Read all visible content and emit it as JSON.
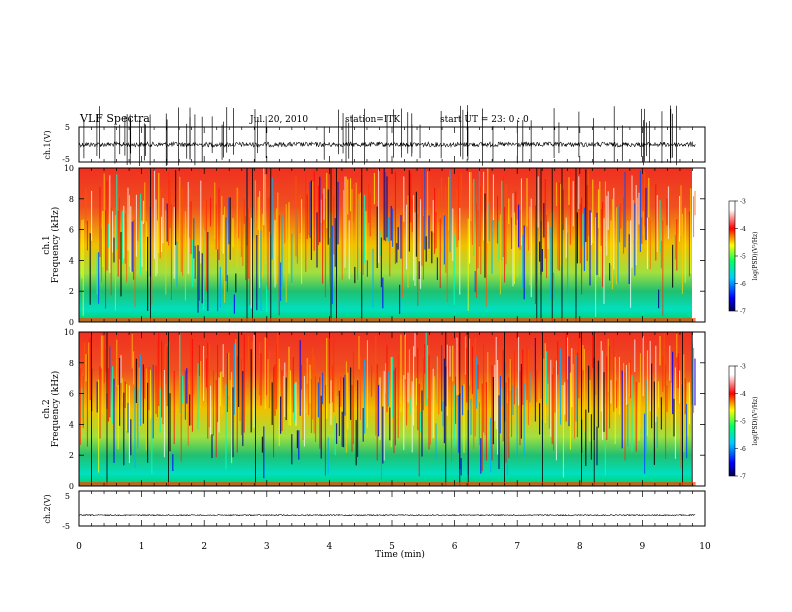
{
  "header": {
    "title": "VLF Spectra",
    "date": "Jul. 20, 2010",
    "station": "station=ITK",
    "start": "start UT = 23: 0 : 0"
  },
  "chart_data": [
    {
      "id": "ch1-waveform",
      "type": "line",
      "ylabel": "ch.1(V)",
      "ylim": [
        -5,
        5
      ],
      "yticks": [
        "5",
        "-5"
      ],
      "baseline": 0
    },
    {
      "id": "ch1-spectrogram",
      "type": "heatmap",
      "ylabel_top": "ch.1",
      "ylabel": "Frequency (kHz)",
      "ylim": [
        0,
        10
      ],
      "yticks": [
        "0",
        "2",
        "4",
        "6",
        "8",
        "10"
      ],
      "colorbar": {
        "label": "log(PSD)(V²/Hz)",
        "ticks": [
          "-3",
          "-4",
          "-5",
          "-6",
          "-7"
        ],
        "range": [
          -7,
          -3
        ]
      }
    },
    {
      "id": "ch2-spectrogram",
      "type": "heatmap",
      "ylabel_top": "ch.2",
      "ylabel": "Frequency (kHz)",
      "ylim": [
        0,
        10
      ],
      "yticks": [
        "0",
        "2",
        "4",
        "6",
        "8",
        "10"
      ],
      "colorbar": {
        "label": "log(PSD)(V²/Hz)",
        "ticks": [
          "-3",
          "-4",
          "-5",
          "-6",
          "-7"
        ],
        "range": [
          -7,
          -3
        ]
      }
    },
    {
      "id": "ch2-waveform",
      "type": "line",
      "ylabel": "ch.2(V)",
      "ylim": [
        -5,
        5
      ],
      "yticks": [
        "5",
        "-5"
      ],
      "baseline": -1.9
    }
  ],
  "xaxis": {
    "label": "Time (min)",
    "ticks": [
      "0",
      "1",
      "2",
      "3",
      "4",
      "5",
      "6",
      "7",
      "8",
      "9",
      "10"
    ],
    "range": [
      0,
      10
    ],
    "data_end": 9.85
  },
  "colors": {
    "spectro_low": "#00008b",
    "spectro_high": "#ff0000",
    "trace": "#000000"
  }
}
